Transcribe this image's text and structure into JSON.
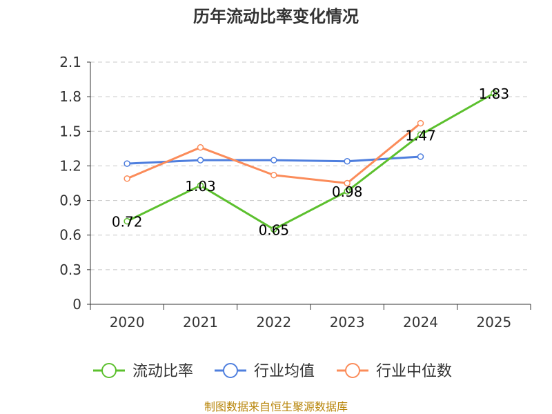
{
  "chart_data": {
    "type": "line",
    "title": "历年流动比率变化情况",
    "categories": [
      "2020",
      "2021",
      "2022",
      "2023",
      "2024",
      "2025"
    ],
    "ylim": [
      0,
      2.1
    ],
    "yticks": [
      "0",
      "0.3",
      "0.6",
      "0.9",
      "1.2",
      "1.5",
      "1.8",
      "2.1"
    ],
    "grid": true,
    "legend_position": "bottom",
    "series": [
      {
        "name": "流动比率",
        "color": "#5cc02e",
        "values": [
          0.72,
          1.03,
          0.65,
          0.98,
          1.47,
          1.83
        ],
        "labels": [
          "0.72",
          "1.03",
          "0.65",
          "0.98",
          "1.47",
          "1.83"
        ]
      },
      {
        "name": "行业均值",
        "color": "#4f7fde",
        "values": [
          1.22,
          1.25,
          1.25,
          1.24,
          1.28,
          null
        ]
      },
      {
        "name": "行业中位数",
        "color": "#fb8c5a",
        "values": [
          1.09,
          1.36,
          1.12,
          1.05,
          1.57,
          null
        ]
      }
    ]
  },
  "source_text": "制图数据来自恒生聚源数据库"
}
